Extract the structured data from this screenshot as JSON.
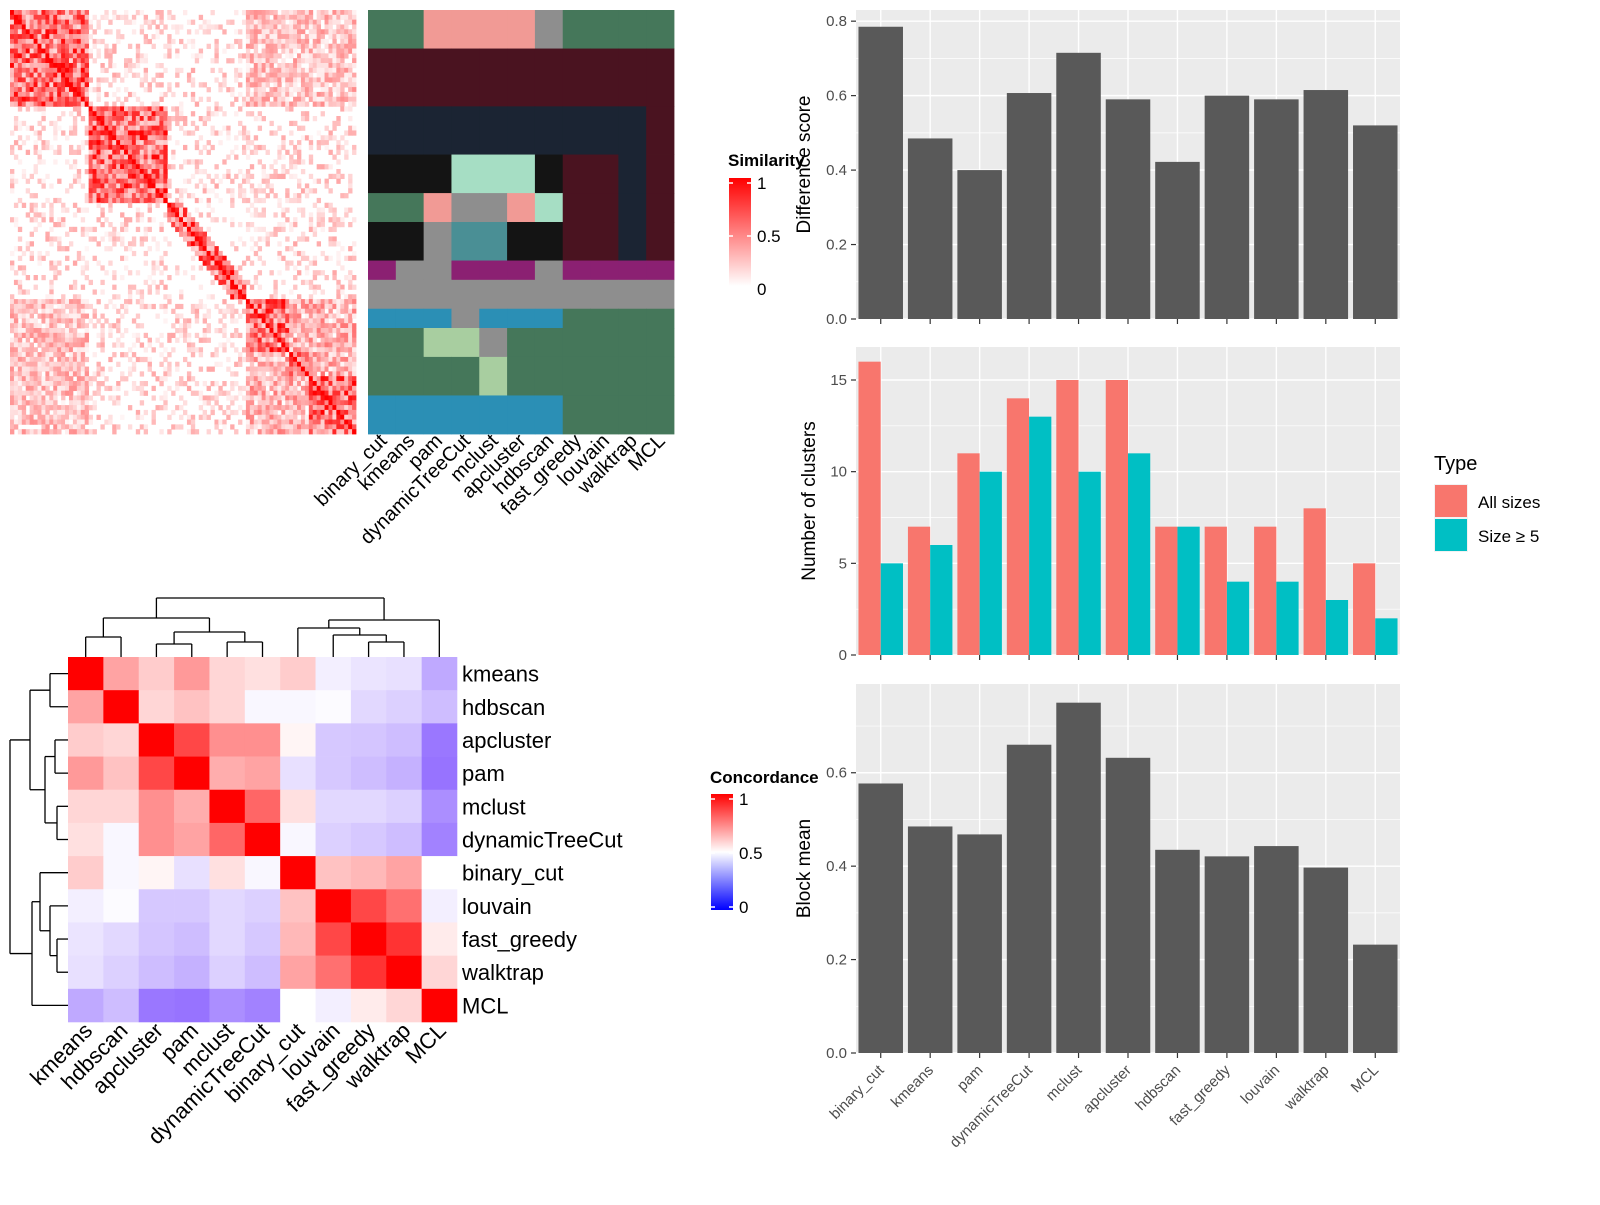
{
  "methods_heatmap_order": [
    "binary_cut",
    "kmeans",
    "pam",
    "dynamicTreeCut",
    "mclust",
    "apcluster",
    "hdbscan",
    "fast_greedy",
    "louvain",
    "walktrap",
    "MCL"
  ],
  "similarity_legend": {
    "title": "Similarity",
    "ticks": [
      "1",
      "0.5",
      "0"
    ]
  },
  "concordance_legend": {
    "title": "Concordance",
    "ticks": [
      "1",
      "0.5",
      "0"
    ]
  },
  "type_legend": {
    "title": "Type",
    "items": [
      {
        "label": "All sizes",
        "color": "#F8766D"
      },
      {
        "label": "Size ≥ 5",
        "color": "#00BFC4"
      }
    ]
  },
  "colors": {
    "bar_gray": "#595959",
    "panel_bg": "#EBEBEB",
    "similarity_high": "#FF0000",
    "concordance_high": "#FF0000",
    "concordance_low": "#0000FF"
  },
  "chart_data": [
    {
      "type": "heatmap",
      "name": "similarity-heatmap",
      "legend_title": "Similarity",
      "value_range": [
        0,
        1
      ]
    },
    {
      "type": "heatmap",
      "name": "cluster-label-heatmap",
      "columns": [
        "binary_cut",
        "kmeans",
        "pam",
        "dynamicTreeCut",
        "mclust",
        "apcluster",
        "hdbscan",
        "fast_greedy",
        "louvain",
        "walktrap",
        "MCL"
      ]
    },
    {
      "type": "heatmap",
      "name": "concordance-heatmap",
      "legend_title": "Concordance",
      "labels": [
        "kmeans",
        "hdbscan",
        "apcluster",
        "pam",
        "mclust",
        "dynamicTreeCut",
        "binary_cut",
        "louvain",
        "fast_greedy",
        "walktrap",
        "MCL"
      ],
      "matrix": [
        [
          1.0,
          0.68,
          0.6,
          0.7,
          0.58,
          0.56,
          0.6,
          0.46,
          0.43,
          0.42,
          0.28
        ],
        [
          0.68,
          1.0,
          0.58,
          0.62,
          0.58,
          0.48,
          0.48,
          0.49,
          0.4,
          0.38,
          0.33
        ],
        [
          0.6,
          0.58,
          1.0,
          0.86,
          0.72,
          0.72,
          0.52,
          0.36,
          0.35,
          0.33,
          0.15
        ],
        [
          0.7,
          0.62,
          0.86,
          1.0,
          0.66,
          0.68,
          0.42,
          0.36,
          0.33,
          0.3,
          0.14
        ],
        [
          0.58,
          0.58,
          0.72,
          0.66,
          1.0,
          0.8,
          0.56,
          0.4,
          0.4,
          0.38,
          0.21
        ],
        [
          0.56,
          0.48,
          0.72,
          0.68,
          0.8,
          1.0,
          0.48,
          0.38,
          0.36,
          0.33,
          0.18
        ],
        [
          0.6,
          0.48,
          0.52,
          0.42,
          0.56,
          0.48,
          1.0,
          0.62,
          0.64,
          0.68,
          0.5
        ],
        [
          0.46,
          0.49,
          0.36,
          0.36,
          0.4,
          0.38,
          0.62,
          1.0,
          0.86,
          0.78,
          0.46
        ],
        [
          0.43,
          0.4,
          0.35,
          0.33,
          0.4,
          0.36,
          0.64,
          0.86,
          1.0,
          0.9,
          0.54
        ],
        [
          0.42,
          0.38,
          0.33,
          0.3,
          0.38,
          0.33,
          0.68,
          0.78,
          0.9,
          1.0,
          0.58
        ],
        [
          0.28,
          0.33,
          0.15,
          0.14,
          0.21,
          0.18,
          0.5,
          0.46,
          0.54,
          0.58,
          1.0
        ]
      ],
      "value_range": [
        0,
        1
      ]
    },
    {
      "type": "bar",
      "name": "difference-score",
      "categories": [
        "binary_cut",
        "kmeans",
        "pam",
        "dynamicTreeCut",
        "mclust",
        "apcluster",
        "hdbscan",
        "fast_greedy",
        "louvain",
        "walktrap",
        "MCL"
      ],
      "values": [
        0.785,
        0.485,
        0.4,
        0.607,
        0.715,
        0.59,
        0.422,
        0.6,
        0.59,
        0.615,
        0.52
      ],
      "ylabel": "Difference score",
      "ylim": [
        0,
        0.83
      ],
      "yticks": [
        0.0,
        0.2,
        0.4,
        0.6,
        0.8
      ],
      "ytick_labels": [
        "0.0",
        "0.2",
        "0.4",
        "0.6",
        "0.8"
      ],
      "grid": true
    },
    {
      "type": "bar",
      "name": "number-of-clusters",
      "categories": [
        "binary_cut",
        "kmeans",
        "pam",
        "dynamicTreeCut",
        "mclust",
        "apcluster",
        "hdbscan",
        "fast_greedy",
        "louvain",
        "walktrap",
        "MCL"
      ],
      "series": [
        {
          "name": "All sizes",
          "values": [
            16,
            7,
            11,
            14,
            15,
            15,
            7,
            7,
            7,
            8,
            5
          ]
        },
        {
          "name": "Size ≥ 5",
          "values": [
            5,
            6,
            10,
            13,
            10,
            11,
            7,
            4,
            4,
            3,
            2
          ]
        }
      ],
      "ylabel": "Number of clusters",
      "ylim": [
        0,
        16.8
      ],
      "yticks": [
        0,
        5,
        10,
        15
      ],
      "ytick_labels": [
        "0",
        "5",
        "10",
        "15"
      ],
      "legend": "right",
      "grid": true
    },
    {
      "type": "bar",
      "name": "block-mean",
      "categories": [
        "binary_cut",
        "kmeans",
        "pam",
        "dynamicTreeCut",
        "mclust",
        "apcluster",
        "hdbscan",
        "fast_greedy",
        "louvain",
        "walktrap",
        "MCL"
      ],
      "values": [
        0.577,
        0.485,
        0.468,
        0.66,
        0.75,
        0.632,
        0.435,
        0.421,
        0.443,
        0.397,
        0.232
      ],
      "ylabel": "Block mean",
      "ylim": [
        0,
        0.79
      ],
      "yticks": [
        0.0,
        0.2,
        0.4,
        0.6
      ],
      "ytick_labels": [
        "0.0",
        "0.2",
        "0.4",
        "0.6"
      ],
      "grid": true
    }
  ]
}
